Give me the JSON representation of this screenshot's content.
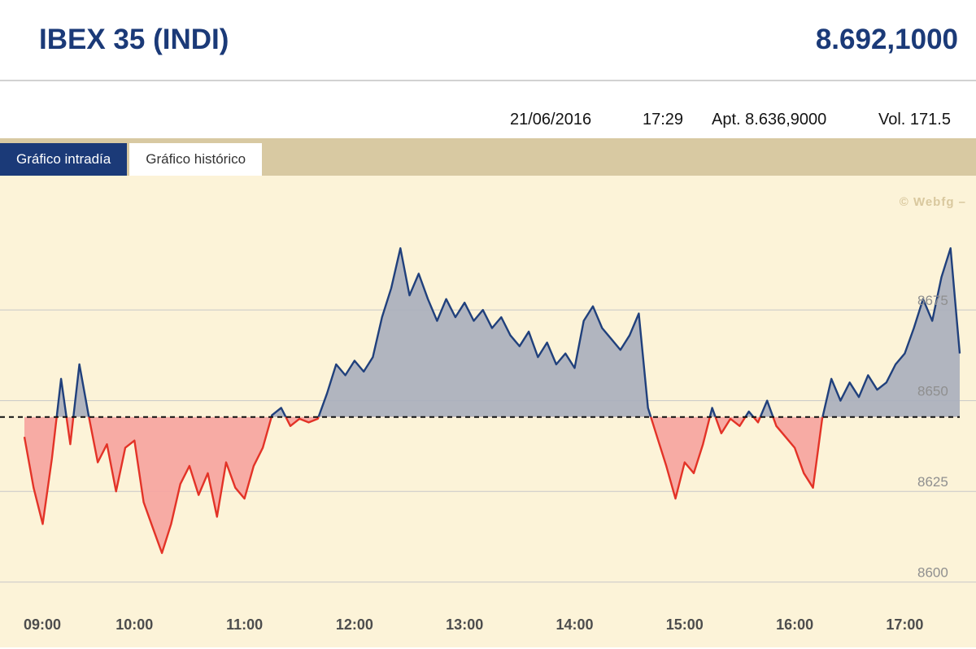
{
  "header": {
    "title": "IBEX 35 (INDI)",
    "price": "8.692,1000"
  },
  "info_bar": {
    "date": "21/06/2016",
    "time": "17:29",
    "open_label": "Apt.",
    "open_value": "8.636,9000",
    "volume_label": "Vol.",
    "volume_value": "171.5"
  },
  "tabs": [
    {
      "label": "Gráfico intradía",
      "active": true
    },
    {
      "label": "Gráfico histórico",
      "active": false
    }
  ],
  "watermark": "© Webfg –",
  "colors": {
    "accent_navy": "#1b3a78",
    "tab_strip_tan": "#d8c9a2",
    "chart_background": "#fcf3d8"
  },
  "chart_data": {
    "type": "area",
    "title": "IBEX 35 (INDI) intraday",
    "baseline": 8645.5,
    "ylim": [
      8582,
      8712
    ],
    "xlim": [
      "09:00",
      "17:30"
    ],
    "yticks": [
      8600,
      8625,
      8650,
      8675
    ],
    "xticks": [
      "09:00",
      "10:00",
      "11:00",
      "12:00",
      "13:00",
      "14:00",
      "15:00",
      "16:00",
      "17:00"
    ],
    "x": [
      "09:00",
      "09:05",
      "09:10",
      "09:15",
      "09:20",
      "09:25",
      "09:30",
      "09:35",
      "09:40",
      "09:45",
      "09:50",
      "09:55",
      "10:00",
      "10:05",
      "10:10",
      "10:15",
      "10:20",
      "10:25",
      "10:30",
      "10:35",
      "10:40",
      "10:45",
      "10:50",
      "10:55",
      "11:00",
      "11:05",
      "11:10",
      "11:15",
      "11:20",
      "11:25",
      "11:30",
      "11:35",
      "11:40",
      "11:45",
      "11:50",
      "11:55",
      "12:00",
      "12:05",
      "12:10",
      "12:15",
      "12:20",
      "12:25",
      "12:30",
      "12:35",
      "12:40",
      "12:45",
      "12:50",
      "12:55",
      "13:00",
      "13:05",
      "13:10",
      "13:15",
      "13:20",
      "13:25",
      "13:30",
      "13:35",
      "13:40",
      "13:45",
      "13:50",
      "13:55",
      "14:00",
      "14:05",
      "14:10",
      "14:15",
      "14:20",
      "14:25",
      "14:30",
      "14:35",
      "14:40",
      "14:45",
      "14:50",
      "14:55",
      "15:00",
      "15:05",
      "15:10",
      "15:15",
      "15:20",
      "15:25",
      "15:30",
      "15:35",
      "15:40",
      "15:45",
      "15:50",
      "15:55",
      "16:00",
      "16:05",
      "16:10",
      "16:15",
      "16:20",
      "16:25",
      "16:30",
      "16:35",
      "16:40",
      "16:45",
      "16:50",
      "16:55",
      "17:00",
      "17:05",
      "17:10",
      "17:15",
      "17:20",
      "17:25",
      "17:30"
    ],
    "values": [
      8640,
      8626,
      8616,
      8634,
      8656,
      8638,
      8660,
      8646,
      8633,
      8638,
      8625,
      8637,
      8639,
      8622,
      8615,
      8608,
      8616,
      8627,
      8632,
      8624,
      8630,
      8618,
      8633,
      8626,
      8623,
      8632,
      8637,
      8646,
      8648,
      8643,
      8645,
      8644,
      8645,
      8652,
      8660,
      8657,
      8661,
      8658,
      8662,
      8673,
      8681,
      8692,
      8679,
      8685,
      8678,
      8672,
      8678,
      8673,
      8677,
      8672,
      8675,
      8670,
      8673,
      8668,
      8665,
      8669,
      8662,
      8666,
      8660,
      8663,
      8659,
      8672,
      8676,
      8670,
      8667,
      8664,
      8668,
      8674,
      8648,
      8640,
      8632,
      8623,
      8633,
      8630,
      8638,
      8648,
      8641,
      8645,
      8643,
      8647,
      8644,
      8650,
      8643,
      8640,
      8637,
      8630,
      8626,
      8645,
      8656,
      8650,
      8655,
      8651,
      8657,
      8653,
      8655,
      8660,
      8663,
      8670,
      8678,
      8672,
      8684,
      8692,
      8663
    ],
    "colors": {
      "grid": "#c8c8c8",
      "ytick": "#8f8f8f",
      "xtick": "#4d4d4d",
      "line_above": "#20407c",
      "line_below": "#e33327",
      "fill_above": "#a8aebc",
      "fill_below": "#f6a39e",
      "baseline_line": "#111111"
    },
    "legend": "none",
    "grid": true
  }
}
